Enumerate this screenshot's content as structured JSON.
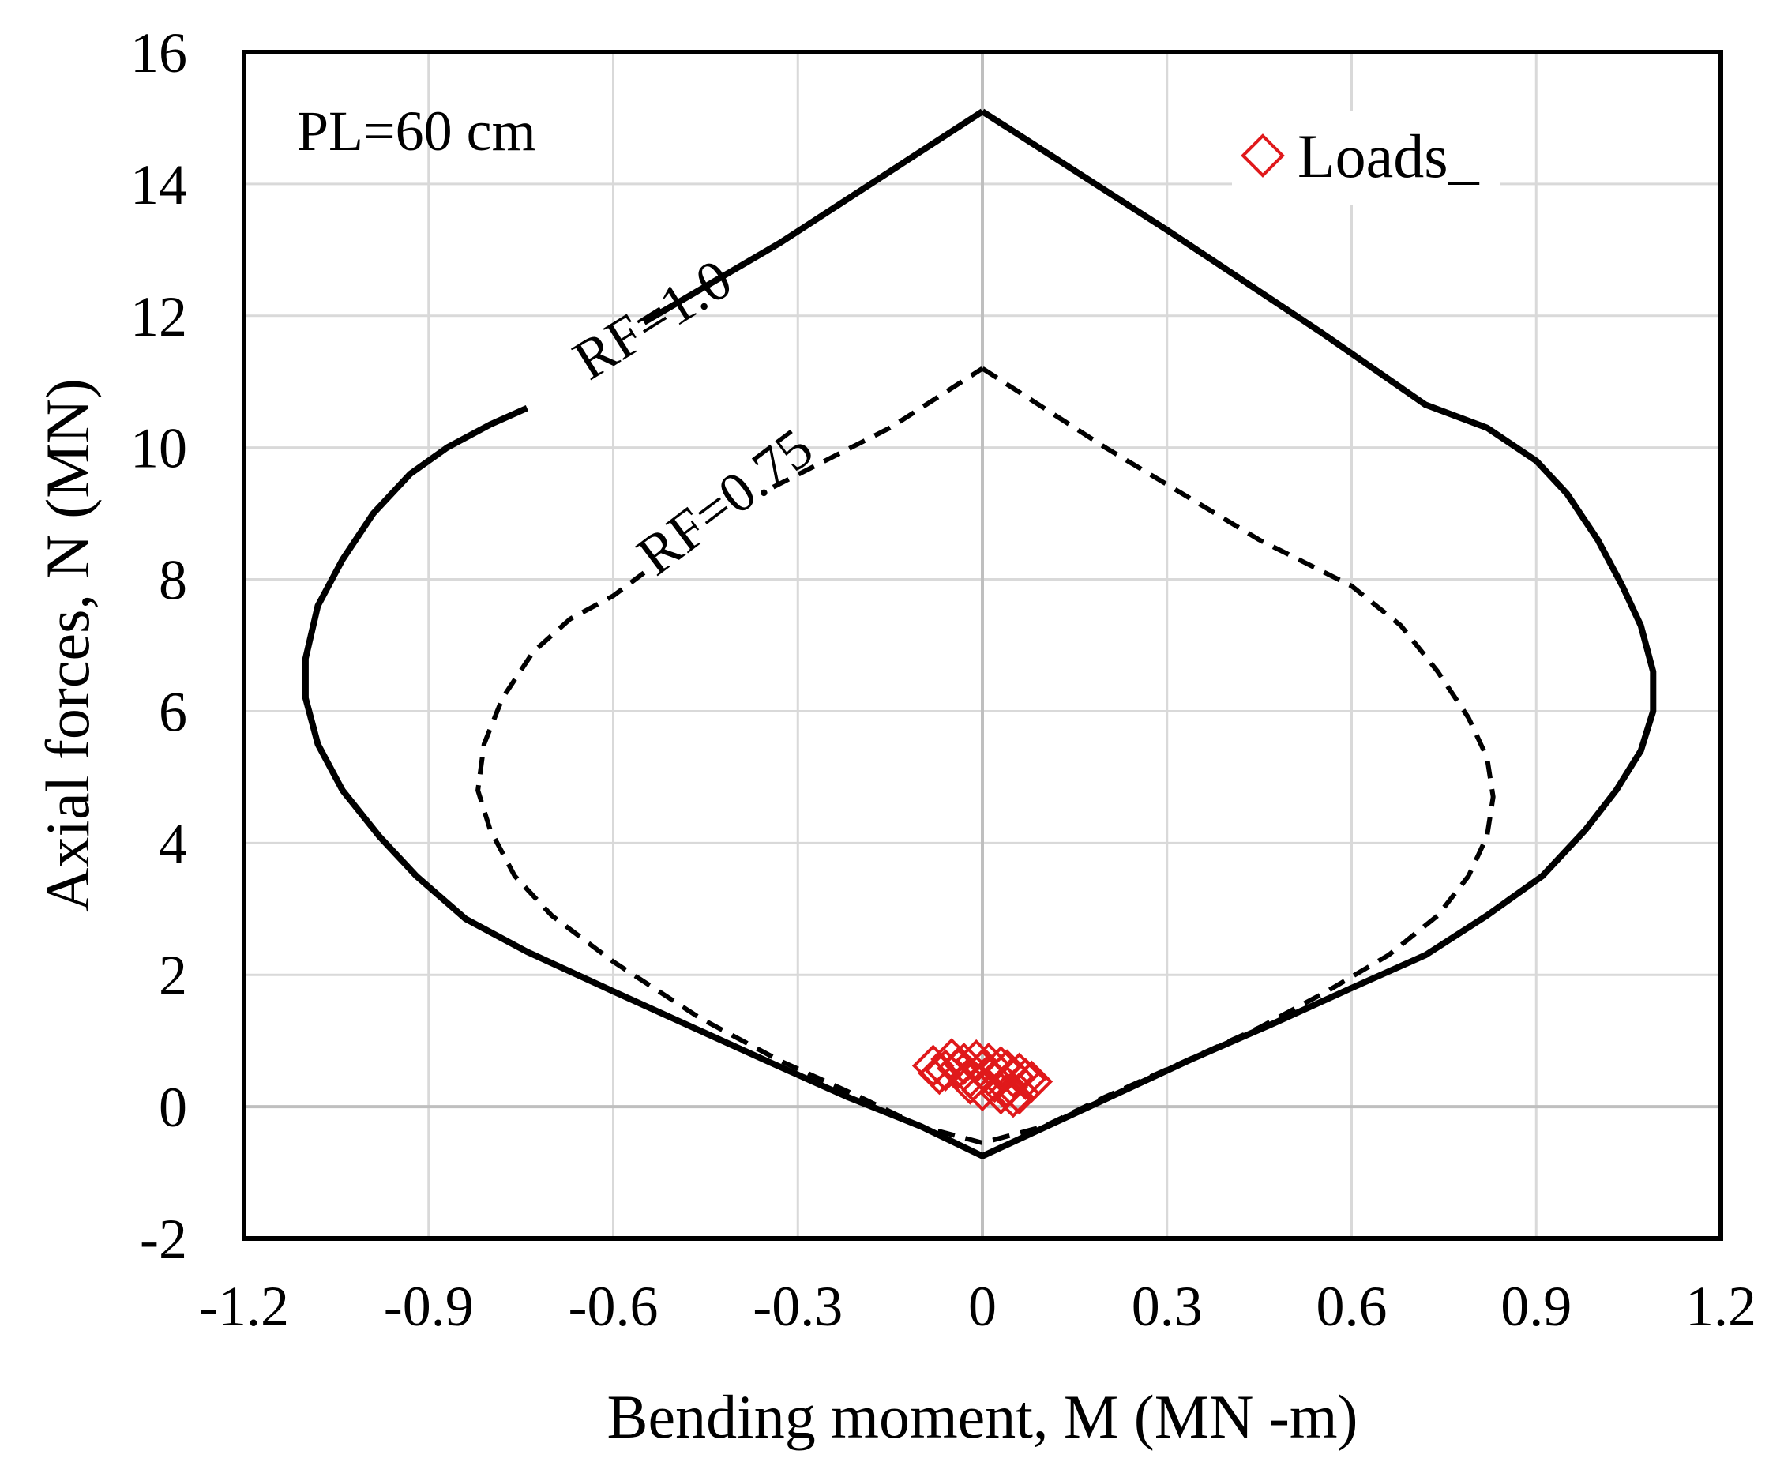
{
  "chart_data": {
    "type": "line",
    "title": "",
    "xlabel": "Bending moment, M (MN   -m)",
    "ylabel": "Axial forces, N (MN)",
    "xlim": [
      -1.2,
      1.2
    ],
    "ylim": [
      -2,
      16
    ],
    "xticks": [
      -1.2,
      -0.9,
      -0.6,
      -0.3,
      0,
      0.3,
      0.6,
      0.9,
      1.2
    ],
    "xtick_labels": [
      "-1.2",
      "-0.9",
      "-0.6",
      "-0.3",
      "0",
      "0.3",
      "0.6",
      "0.9",
      "1.2"
    ],
    "yticks": [
      -2,
      0,
      2,
      4,
      6,
      8,
      10,
      12,
      14,
      16
    ],
    "ytick_labels": [
      "-2",
      "0",
      "2",
      "4",
      "6",
      "8",
      "10",
      "12",
      "14",
      "16"
    ],
    "grid": true,
    "annotation": "PL=60 cm",
    "colors": {
      "curve": "#000000",
      "loads": "#e0191b",
      "grid": "#d9d9d9"
    },
    "series": [
      {
        "name": "RF=1.0",
        "style": "solid",
        "label_text": "RF=1.0",
        "label_at": [
          -0.52,
          11.7
        ],
        "label_angle": -32,
        "x": [
          0,
          0.3,
          0.55,
          0.72,
          0.82,
          0.9,
          0.95,
          1.0,
          1.04,
          1.07,
          1.09,
          1.09,
          1.07,
          1.03,
          0.98,
          0.91,
          0.82,
          0.72,
          0.6,
          0.47,
          0.34,
          0.22,
          0.1,
          0.0,
          -0.1,
          -0.22,
          -0.34,
          -0.47,
          -0.6,
          -0.74,
          -0.84,
          -0.92,
          -0.98,
          -1.04,
          -1.08,
          -1.1,
          -1.1,
          -1.08,
          -1.04,
          -0.99,
          -0.93,
          -0.87,
          -0.8,
          -0.74,
          -0.55,
          -0.33
        ],
        "y": [
          15.1,
          13.3,
          11.75,
          10.65,
          10.3,
          9.8,
          9.3,
          8.6,
          7.9,
          7.3,
          6.6,
          6.0,
          5.4,
          4.8,
          4.2,
          3.5,
          2.9,
          2.3,
          1.8,
          1.25,
          0.72,
          0.2,
          -0.32,
          -0.75,
          -0.3,
          0.15,
          0.65,
          1.2,
          1.75,
          2.35,
          2.85,
          3.5,
          4.1,
          4.8,
          5.5,
          6.2,
          6.8,
          7.6,
          8.3,
          9.0,
          9.6,
          10.0,
          10.35,
          10.6,
          11.9,
          13.1
        ],
        "gaps": [
          [
            -0.74,
            -0.55
          ]
        ]
      },
      {
        "name": "RF=0.75",
        "style": "dashed",
        "label_text": "RF=0.75",
        "label_at": [
          -0.4,
          8.95
        ],
        "label_angle": -37,
        "x": [
          0,
          0.2,
          0.45,
          0.6,
          0.68,
          0.74,
          0.79,
          0.82,
          0.83,
          0.82,
          0.79,
          0.74,
          0.66,
          0.56,
          0.45,
          0.32,
          0.2,
          0.1,
          0.0,
          -0.1,
          -0.2,
          -0.33,
          -0.46,
          -0.6,
          -0.7,
          -0.76,
          -0.8,
          -0.82,
          -0.81,
          -0.78,
          -0.73,
          -0.67,
          -0.6,
          -0.55,
          -0.34,
          -0.15
        ],
        "y": [
          11.2,
          10.0,
          8.6,
          7.9,
          7.3,
          6.6,
          5.9,
          5.3,
          4.7,
          4.1,
          3.5,
          2.9,
          2.3,
          1.75,
          1.2,
          0.65,
          0.15,
          -0.3,
          -0.55,
          -0.3,
          0.15,
          0.7,
          1.35,
          2.2,
          2.9,
          3.5,
          4.2,
          4.8,
          5.5,
          6.2,
          6.9,
          7.4,
          7.75,
          8.1,
          9.4,
          10.3
        ],
        "gaps": [
          [
            -0.55,
            -0.34
          ]
        ]
      }
    ],
    "loads": {
      "name": "Loads_",
      "type": "scatter",
      "marker": "diamond",
      "x": [
        -0.08,
        -0.07,
        -0.05,
        -0.04,
        -0.03,
        -0.02,
        -0.01,
        0.0,
        0.01,
        0.02,
        0.03,
        0.04,
        0.05,
        0.06,
        0.07,
        0.08,
        -0.06,
        0.0,
        0.03,
        0.06,
        0.01,
        0.04,
        -0.02,
        0.05
      ],
      "y": [
        0.62,
        0.5,
        0.72,
        0.58,
        0.65,
        0.45,
        0.7,
        0.55,
        0.48,
        0.38,
        0.6,
        0.3,
        0.45,
        0.5,
        0.42,
        0.38,
        0.55,
        0.25,
        0.2,
        0.2,
        0.65,
        0.55,
        0.35,
        0.15
      ]
    },
    "legend": {
      "position": "top-right",
      "entries": [
        "Loads_"
      ]
    }
  }
}
